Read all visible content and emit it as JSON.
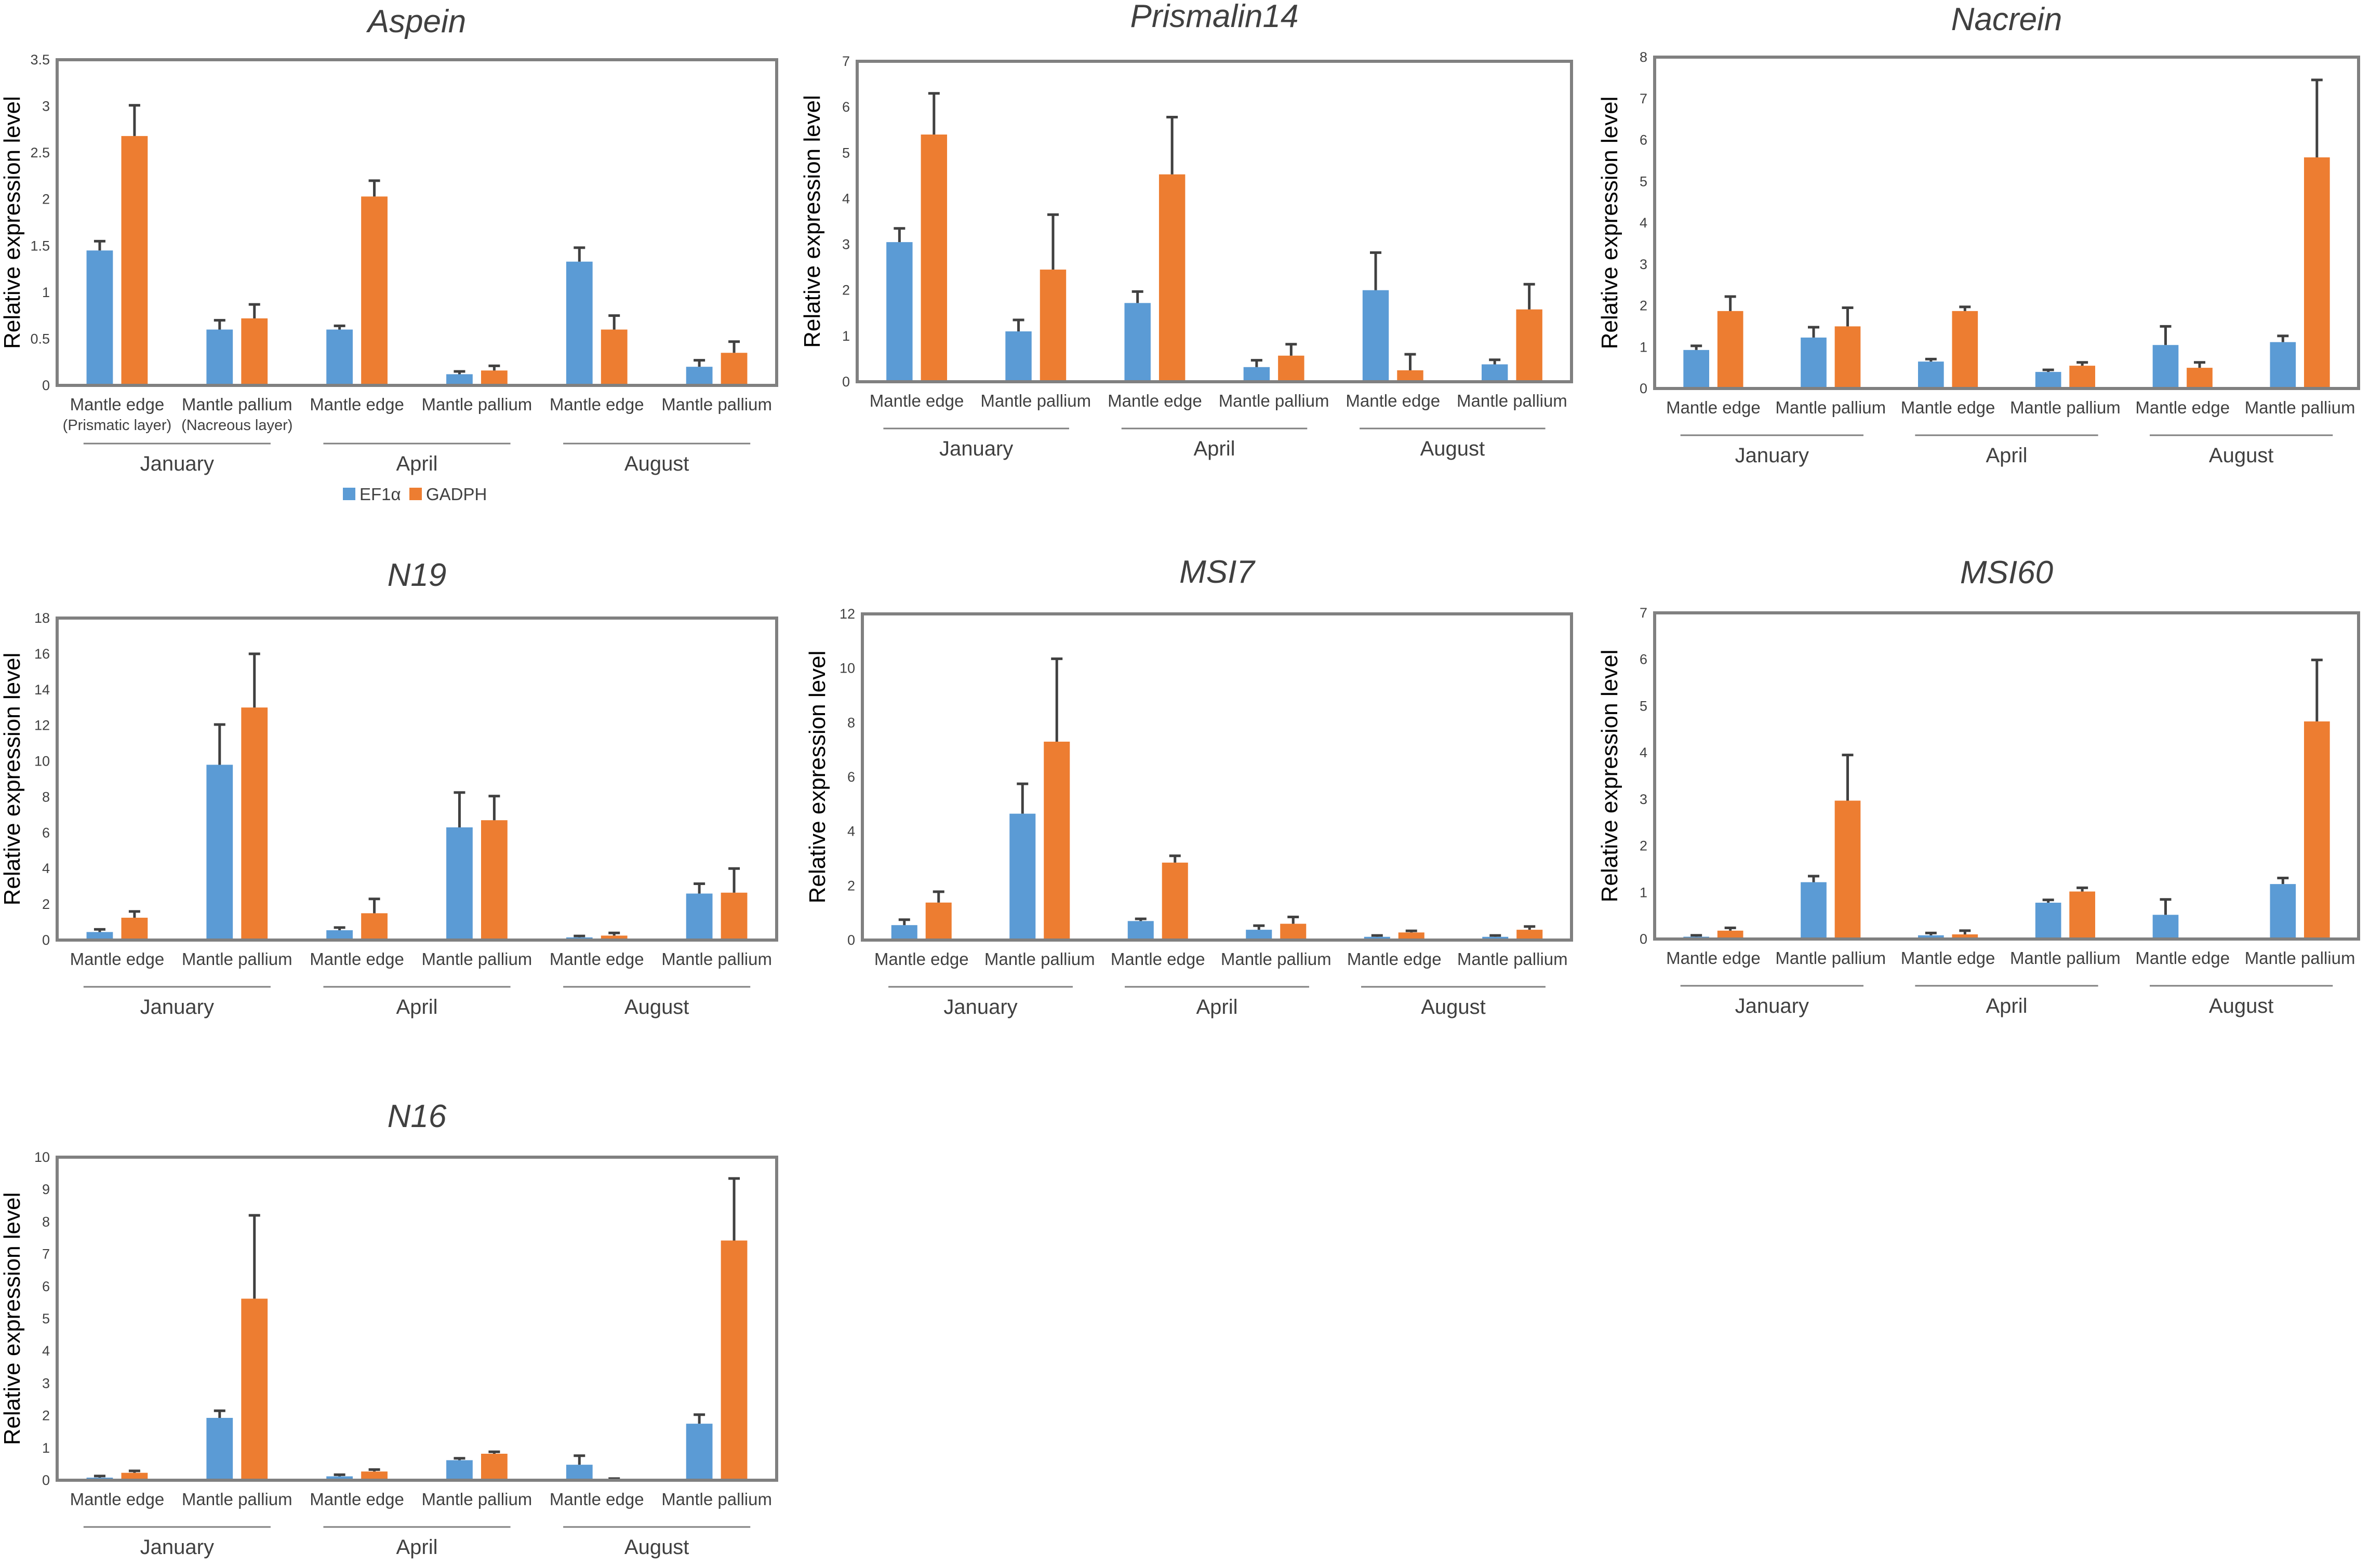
{
  "colors": {
    "EF1a": "#5b9bd5",
    "GADPH": "#ed7d31",
    "frame": "#808080",
    "error_bar": "#404040"
  },
  "legend": [
    {
      "label": "EF1α",
      "color": "#5b9bd5"
    },
    {
      "label": "GADPH",
      "color": "#ed7d31"
    }
  ],
  "chart_data": [
    {
      "type": "bar",
      "title": "Aspein",
      "ylabel": "Relative expression level",
      "ylim": [
        0,
        3.5
      ],
      "yticks": [
        "0",
        "0.5",
        "1",
        "1.5",
        "2",
        "2.5",
        "3",
        "3.5"
      ],
      "categories": [
        "Mantle edge",
        "Mantle pallium",
        "Mantle edge",
        "Mantle pallium",
        "Mantle edge",
        "Mantle pallium"
      ],
      "sublabels": [
        "(Prismatic layer)",
        "(Nacreous layer)",
        "",
        "",
        "",
        ""
      ],
      "groups": [
        "January",
        "April",
        "August"
      ],
      "series": [
        {
          "name": "EF1α",
          "values": [
            1.45,
            0.6,
            0.6,
            0.12,
            1.33,
            0.2
          ],
          "errors": [
            0.1,
            0.1,
            0.04,
            0.03,
            0.15,
            0.07
          ]
        },
        {
          "name": "GADPH",
          "values": [
            2.68,
            0.72,
            2.03,
            0.16,
            0.6,
            0.35
          ],
          "errors": [
            0.33,
            0.15,
            0.17,
            0.05,
            0.15,
            0.12
          ]
        }
      ]
    },
    {
      "type": "bar",
      "title": "Prismalin14",
      "ylabel": "Relative expression level",
      "ylim": [
        0,
        7
      ],
      "yticks": [
        "0",
        "1",
        "2",
        "3",
        "4",
        "5",
        "6",
        "7"
      ],
      "categories": [
        "Mantle edge",
        "Mantle pallium",
        "Mantle edge",
        "Mantle pallium",
        "Mantle edge",
        "Mantle pallium"
      ],
      "sublabels": [
        "",
        "",
        "",
        "",
        "",
        ""
      ],
      "groups": [
        "January",
        "April",
        "August"
      ],
      "series": [
        {
          "name": "EF1α",
          "values": [
            3.05,
            1.1,
            1.72,
            0.32,
            2.0,
            0.38
          ],
          "errors": [
            0.3,
            0.25,
            0.25,
            0.15,
            0.82,
            0.1
          ]
        },
        {
          "name": "GADPH",
          "values": [
            5.4,
            2.45,
            4.53,
            0.57,
            0.25,
            1.58
          ],
          "errors": [
            0.9,
            1.2,
            1.25,
            0.25,
            0.35,
            0.55
          ]
        }
      ]
    },
    {
      "type": "bar",
      "title": "Nacrein",
      "ylabel": "Relative expression level",
      "ylim": [
        0,
        8
      ],
      "yticks": [
        "0",
        "1",
        "2",
        "3",
        "4",
        "5",
        "6",
        "7",
        "8"
      ],
      "categories": [
        "Mantle edge",
        "Mantle pallium",
        "Mantle edge",
        "Mantle pallium",
        "Mantle edge",
        "Mantle pallium"
      ],
      "sublabels": [
        "",
        "",
        "",
        "",
        "",
        ""
      ],
      "groups": [
        "January",
        "April",
        "August"
      ],
      "series": [
        {
          "name": "EF1α",
          "values": [
            0.93,
            1.23,
            0.65,
            0.4,
            1.05,
            1.12
          ],
          "errors": [
            0.1,
            0.25,
            0.06,
            0.05,
            0.45,
            0.15
          ]
        },
        {
          "name": "GADPH",
          "values": [
            1.87,
            1.5,
            1.87,
            0.55,
            0.5,
            5.58
          ],
          "errors": [
            0.35,
            0.45,
            0.1,
            0.08,
            0.13,
            1.87
          ]
        }
      ]
    },
    {
      "type": "bar",
      "title": "N19",
      "ylabel": "Relative expression level",
      "ylim": [
        0,
        18
      ],
      "yticks": [
        "0",
        "2",
        "4",
        "6",
        "8",
        "10",
        "12",
        "14",
        "16",
        "18"
      ],
      "categories": [
        "Mantle edge",
        "Mantle pallium",
        "Mantle edge",
        "Mantle pallium",
        "Mantle edge",
        "Mantle pallium"
      ],
      "sublabels": [
        "",
        "",
        "",
        "",
        "",
        ""
      ],
      "groups": [
        "January",
        "April",
        "August"
      ],
      "series": [
        {
          "name": "EF1α",
          "values": [
            0.45,
            9.8,
            0.55,
            6.3,
            0.15,
            2.6
          ],
          "errors": [
            0.15,
            2.25,
            0.15,
            1.95,
            0.08,
            0.55
          ]
        },
        {
          "name": "GADPH",
          "values": [
            1.25,
            13.0,
            1.5,
            6.7,
            0.25,
            2.65
          ],
          "errors": [
            0.35,
            3.0,
            0.8,
            1.35,
            0.15,
            1.35
          ]
        }
      ]
    },
    {
      "type": "bar",
      "title": "MSI7",
      "ylabel": "Relative expression level",
      "ylim": [
        0,
        12
      ],
      "yticks": [
        "0",
        "2",
        "4",
        "6",
        "8",
        "10",
        "12"
      ],
      "categories": [
        "Mantle edge",
        "Mantle pallium",
        "Mantle edge",
        "Mantle pallium",
        "Mantle edge",
        "Mantle pallium"
      ],
      "sublabels": [
        "",
        "",
        "",
        "",
        "",
        ""
      ],
      "groups": [
        "January",
        "April",
        "August"
      ],
      "series": [
        {
          "name": "EF1α",
          "values": [
            0.55,
            4.65,
            0.7,
            0.38,
            0.12,
            0.12
          ],
          "errors": [
            0.2,
            1.1,
            0.08,
            0.15,
            0.05,
            0.05
          ]
        },
        {
          "name": "GADPH",
          "values": [
            1.38,
            7.3,
            2.85,
            0.6,
            0.28,
            0.38
          ],
          "errors": [
            0.4,
            3.05,
            0.25,
            0.25,
            0.06,
            0.12
          ]
        }
      ]
    },
    {
      "type": "bar",
      "title": "MSI60",
      "ylabel": "Relative expression level",
      "ylim": [
        0,
        7
      ],
      "yticks": [
        "0",
        "1",
        "2",
        "3",
        "4",
        "5",
        "6",
        "7"
      ],
      "categories": [
        "Mantle edge",
        "Mantle pallium",
        "Mantle edge",
        "Mantle pallium",
        "Mantle edge",
        "Mantle pallium"
      ],
      "sublabels": [
        "",
        "",
        "",
        "",
        "",
        ""
      ],
      "groups": [
        "January",
        "April",
        "August"
      ],
      "series": [
        {
          "name": "EF1α",
          "values": [
            0.05,
            1.22,
            0.08,
            0.78,
            0.52,
            1.18
          ],
          "errors": [
            0.03,
            0.13,
            0.05,
            0.06,
            0.33,
            0.13
          ]
        },
        {
          "name": "GADPH",
          "values": [
            0.18,
            2.97,
            0.1,
            1.02,
            0.0,
            4.67
          ],
          "errors": [
            0.06,
            0.98,
            0.08,
            0.08,
            0.0,
            1.32
          ]
        }
      ]
    },
    {
      "type": "bar",
      "title": "N16",
      "ylabel": "Relative expression level",
      "ylim": [
        0,
        10
      ],
      "yticks": [
        "0",
        "1",
        "2",
        "3",
        "4",
        "5",
        "6",
        "7",
        "8",
        "9",
        "10"
      ],
      "categories": [
        "Mantle edge",
        "Mantle pallium",
        "Mantle edge",
        "Mantle pallium",
        "Mantle edge",
        "Mantle pallium"
      ],
      "sublabels": [
        "",
        "",
        "",
        "",
        "",
        ""
      ],
      "groups": [
        "January",
        "April",
        "August"
      ],
      "series": [
        {
          "name": "EF1α",
          "values": [
            0.08,
            1.93,
            0.12,
            0.62,
            0.48,
            1.75
          ],
          "errors": [
            0.05,
            0.22,
            0.05,
            0.06,
            0.28,
            0.28
          ]
        },
        {
          "name": "GADPH",
          "values": [
            0.23,
            5.62,
            0.27,
            0.82,
            0.03,
            7.42
          ],
          "errors": [
            0.06,
            2.58,
            0.06,
            0.06,
            0.02,
            1.92
          ]
        }
      ]
    }
  ]
}
